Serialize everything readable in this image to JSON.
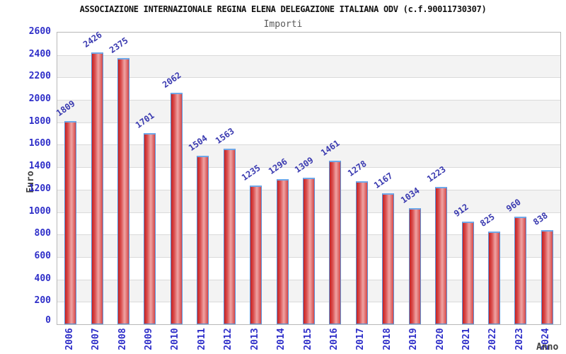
{
  "title": "ASSOCIAZIONE INTERNAZIONALE REGINA ELENA DELEGAZIONE ITALIANA ODV (c.f.90011730307)",
  "subtitle": "Importi",
  "chart_data": {
    "type": "bar",
    "title": "ASSOCIAZIONE INTERNAZIONALE REGINA ELENA DELEGAZIONE ITALIANA ODV (c.f.90011730307)",
    "subtitle": "Importi",
    "xlabel": "Anno",
    "ylabel": "Euro",
    "categories": [
      "2006",
      "2007",
      "2008",
      "2009",
      "2010",
      "2011",
      "2012",
      "2013",
      "2014",
      "2015",
      "2016",
      "2017",
      "2018",
      "2019",
      "2020",
      "2021",
      "2022",
      "2023",
      "2024"
    ],
    "values": [
      1809,
      2426,
      2375,
      1701,
      2062,
      1504,
      1563,
      1235,
      1296,
      1309,
      1461,
      1278,
      1167,
      1034,
      1223,
      912,
      825,
      960,
      838
    ],
    "ylim": [
      0,
      2600
    ],
    "ytick_step": 200,
    "grid": true,
    "stripes": true,
    "legend": false
  },
  "style": {
    "axis_label_color": "#2f2fc9",
    "value_label_color": "#3a3ab0",
    "title_color": "#111111",
    "subtitle_color": "#5a5a5a",
    "axis_title_color": "#3f3f3f",
    "plot_border_color": "#b8b8b8",
    "gridline_color": "#dadada",
    "stripe_color": "#f3f3f3",
    "plot_background": "#ffffff",
    "bar_border_color": "#5b91d8",
    "bar_cap_color": "#6fa8e8",
    "bar_gradient": [
      "#c62020",
      "#da4f4f",
      "#efa4a4",
      "#d64848"
    ]
  }
}
